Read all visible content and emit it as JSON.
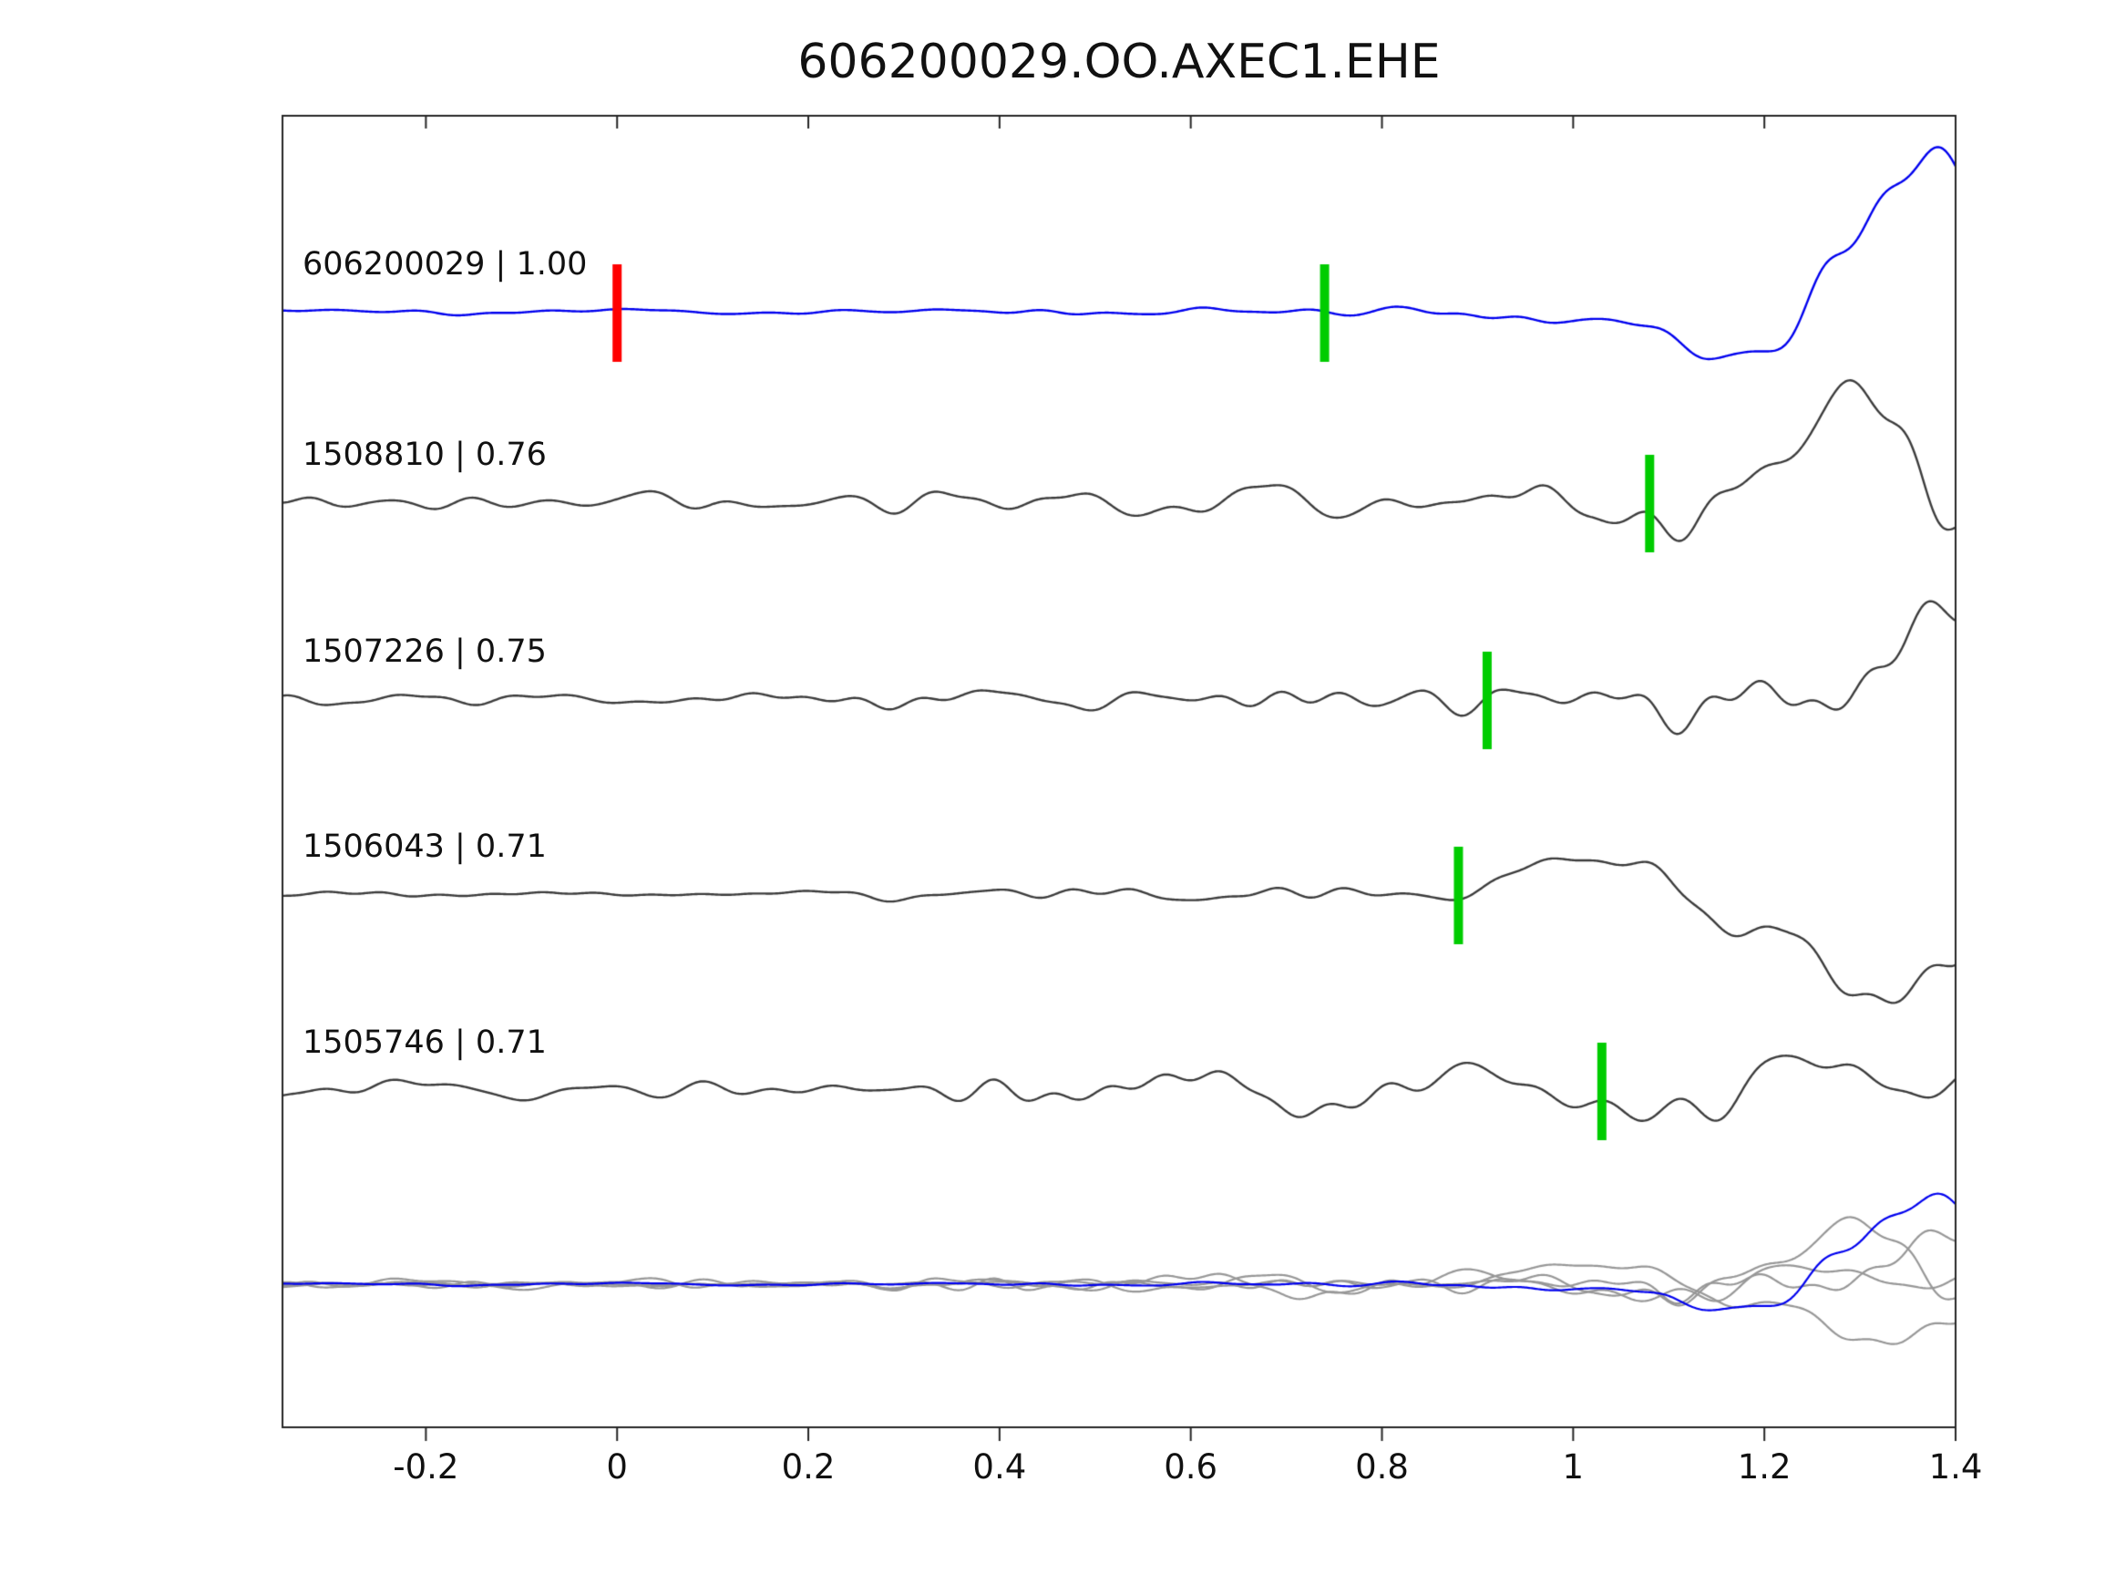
{
  "title": "606200029.OO.AXEC1.EHE",
  "chart_data": {
    "type": "line",
    "description": "Template matching / cross-correlation seismogram detection plot: template trace (blue) and four detected event traces (dark gray) with correlation coefficients, green pick markers, red template origin marker, and an overlay of all traces at the bottom.",
    "xlabel": "",
    "ylabel": "",
    "xlim": [
      -0.35,
      1.4
    ],
    "xticks": [
      -0.2,
      0,
      0.2,
      0.4,
      0.6,
      0.8,
      1,
      1.2,
      1.4
    ],
    "xtick_labels": [
      "-0.2",
      "0",
      "0.2",
      "0.4",
      "0.6",
      "0.8",
      "1",
      "1.2",
      "1.4"
    ],
    "grid": false,
    "legend": "none",
    "colors": {
      "template_trace": "#0000ee",
      "match_trace": "#3c3c3c",
      "overlay_trace": "#979797",
      "pick_marker": "#00cc00",
      "origin_marker": "#ff0000",
      "axis": "#262626"
    },
    "traces": [
      {
        "label": "606200029 | 1.00",
        "event_id": "606200029",
        "correlation": "1.00",
        "is_template": true,
        "pick_x": 0.74,
        "origin_x": 0.0,
        "synthesis": {
          "seed": 101,
          "noise_level": 0.18,
          "onset": 0.82,
          "rel_amp": 1.0
        }
      },
      {
        "label": "1508810 | 0.76",
        "event_id": "1508810",
        "correlation": "0.76",
        "is_template": false,
        "pick_x": 1.08,
        "synthesis": {
          "seed": 202,
          "noise_level": 0.62,
          "onset": 1.02,
          "rel_amp": 0.95
        }
      },
      {
        "label": "1507226 | 0.75",
        "event_id": "1507226",
        "correlation": "0.75",
        "is_template": false,
        "pick_x": 0.91,
        "synthesis": {
          "seed": 303,
          "noise_level": 0.5,
          "onset": 1.05,
          "rel_amp": 1.0
        }
      },
      {
        "label": "1506043 | 0.71",
        "event_id": "1506043",
        "correlation": "0.71",
        "is_template": false,
        "pick_x": 0.88,
        "synthesis": {
          "seed": 404,
          "noise_level": 0.3,
          "onset": 0.82,
          "rel_amp": 1.0
        }
      },
      {
        "label": "1505746 | 0.71",
        "event_id": "1505746",
        "correlation": "0.71",
        "is_template": false,
        "pick_x": 1.03,
        "synthesis": {
          "seed": 505,
          "noise_level": 0.72,
          "onset": 0.98,
          "rel_amp": 0.95
        }
      }
    ],
    "overlay": {
      "description": "all five traces overlaid; detections in light gray, template in blue",
      "amp_scale": 0.55
    }
  }
}
